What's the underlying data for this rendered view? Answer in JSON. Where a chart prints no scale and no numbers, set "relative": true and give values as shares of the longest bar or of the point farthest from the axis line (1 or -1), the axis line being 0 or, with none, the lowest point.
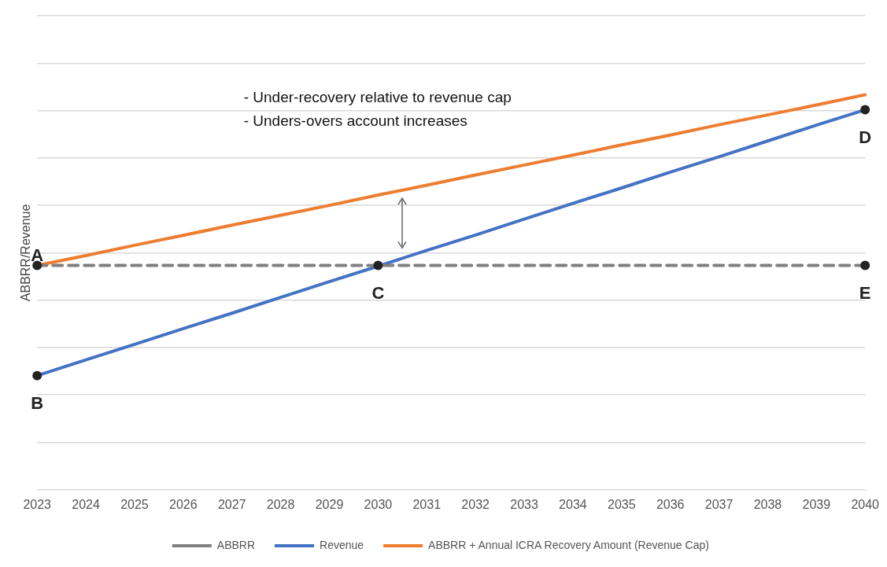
{
  "chart_data": {
    "type": "line",
    "relative": true,
    "ylabel": "ABBRR/Revenue",
    "categories": [
      "2023",
      "2024",
      "2025",
      "2026",
      "2027",
      "2028",
      "2029",
      "2030",
      "2031",
      "2032",
      "2033",
      "2034",
      "2035",
      "2036",
      "2037",
      "2038",
      "2039",
      "2040"
    ],
    "series": [
      {
        "name": "ABBRR",
        "color": "#7f7f7f",
        "line_style": "dashed",
        "values": [
          0.568,
          0.568,
          0.568,
          0.568,
          0.568,
          0.568,
          0.568,
          0.568,
          0.568,
          0.568,
          0.568,
          0.568,
          0.568,
          0.568,
          0.568,
          0.568,
          0.568,
          0.568
        ]
      },
      {
        "name": "Revenue",
        "color": "#4472c4",
        "line_style": "solid",
        "values": [
          0.289,
          0.329,
          0.368,
          0.408,
          0.447,
          0.487,
          0.527,
          0.566,
          0.606,
          0.645,
          0.685,
          0.725,
          0.764,
          0.804,
          0.843,
          0.883,
          0.923,
          0.962
        ]
      },
      {
        "name": "ABBRR + Annual ICRA Recovery Amount (Revenue Cap)",
        "color": "#ed7d31",
        "line_style": "solid",
        "values": [
          0.568,
          0.593,
          0.619,
          0.644,
          0.67,
          0.695,
          0.72,
          0.746,
          0.771,
          0.797,
          0.822,
          0.847,
          0.873,
          0.898,
          0.924,
          0.949,
          0.974,
          1.0
        ]
      }
    ],
    "annotations": [
      {
        "text": "A",
        "x": "2023",
        "y": 0.568
      },
      {
        "text": "B",
        "x": "2023",
        "y": 0.289
      },
      {
        "text": "C",
        "x": "2030",
        "y": 0.568
      },
      {
        "text": "D",
        "x": "2040",
        "y": 0.962
      },
      {
        "text": "E",
        "x": "2040",
        "y": 0.568
      },
      "- Under-recovery relative to revenue cap\n- Unders-overs account increases"
    ],
    "marker": "none",
    "grid": "y",
    "legend": "bottom"
  }
}
